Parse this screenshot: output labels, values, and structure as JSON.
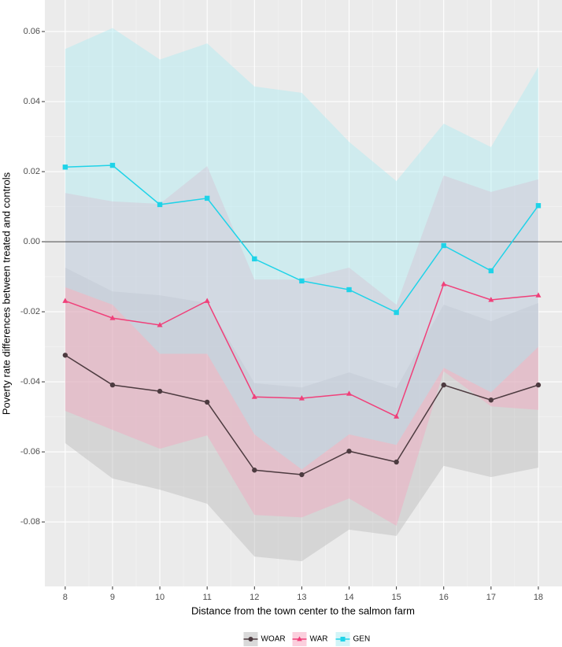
{
  "chart_data": {
    "type": "line",
    "x_label": "Distance from the town center to the salmon farm",
    "y_label": "Poverty rate differences between treated and controls",
    "x": [
      8,
      9,
      10,
      11,
      12,
      13,
      14,
      15,
      16,
      17,
      18
    ],
    "xlim": [
      7.57,
      18.5
    ],
    "xticks": [
      8,
      9,
      10,
      11,
      12,
      13,
      14,
      15,
      16,
      17,
      18
    ],
    "ylim": [
      -0.0984,
      0.069
    ],
    "yticks": [
      -0.08,
      -0.06,
      -0.04,
      -0.02,
      {
        "value": 0,
        "label": "0.00"
      },
      0.02,
      0.04,
      0.06
    ],
    "hline": 0,
    "grid": true,
    "legend": "bottom",
    "series": [
      {
        "name": "WOAR",
        "color": "#4d3b40",
        "band_color": "#b4b4b4",
        "shape": "circle",
        "values": [
          -0.0324,
          -0.0409,
          -0.0427,
          -0.0458,
          -0.0652,
          -0.0665,
          -0.0598,
          -0.0629,
          -0.0409,
          -0.0452,
          -0.0409
        ],
        "lower": [
          -0.0575,
          -0.0676,
          -0.0708,
          -0.0748,
          -0.0899,
          -0.0912,
          -0.0822,
          -0.084,
          -0.064,
          -0.0672,
          -0.0645
        ],
        "upper": [
          -0.0074,
          -0.0142,
          -0.0153,
          -0.0175,
          -0.0404,
          -0.0416,
          -0.0373,
          -0.0418,
          -0.018,
          -0.0227,
          -0.0175
        ]
      },
      {
        "name": "WAR",
        "color": "#f0407a",
        "band_color": "#f7a0bc",
        "shape": "triangle",
        "values": [
          -0.0169,
          -0.0218,
          -0.0238,
          -0.0169,
          -0.0443,
          -0.0447,
          -0.0434,
          -0.0499,
          -0.0121,
          -0.0166,
          -0.0153
        ],
        "lower": [
          -0.0483,
          -0.0537,
          -0.0591,
          -0.0553,
          -0.078,
          -0.0787,
          -0.0733,
          -0.0811,
          -0.037,
          -0.047,
          -0.048
        ],
        "upper": [
          0.0139,
          0.0115,
          0.0108,
          0.0216,
          -0.0108,
          -0.0108,
          -0.0074,
          -0.018,
          0.0189,
          0.0142,
          0.0178
        ]
      },
      {
        "name": "GEN",
        "color": "#1fd3e8",
        "band_color": "#a6ecf2",
        "shape": "square",
        "values": [
          0.0213,
          0.0218,
          0.0106,
          0.0124,
          -0.0049,
          -0.0112,
          -0.0137,
          -0.0202,
          -0.0011,
          -0.0083,
          0.0103
        ],
        "lower": [
          -0.013,
          -0.018,
          -0.032,
          -0.032,
          -0.055,
          -0.065,
          -0.055,
          -0.058,
          -0.036,
          -0.043,
          -0.03
        ],
        "upper": [
          0.055,
          0.061,
          0.052,
          0.0566,
          0.0443,
          0.0425,
          0.0285,
          0.0173,
          0.0337,
          0.027,
          0.0499
        ]
      }
    ]
  }
}
